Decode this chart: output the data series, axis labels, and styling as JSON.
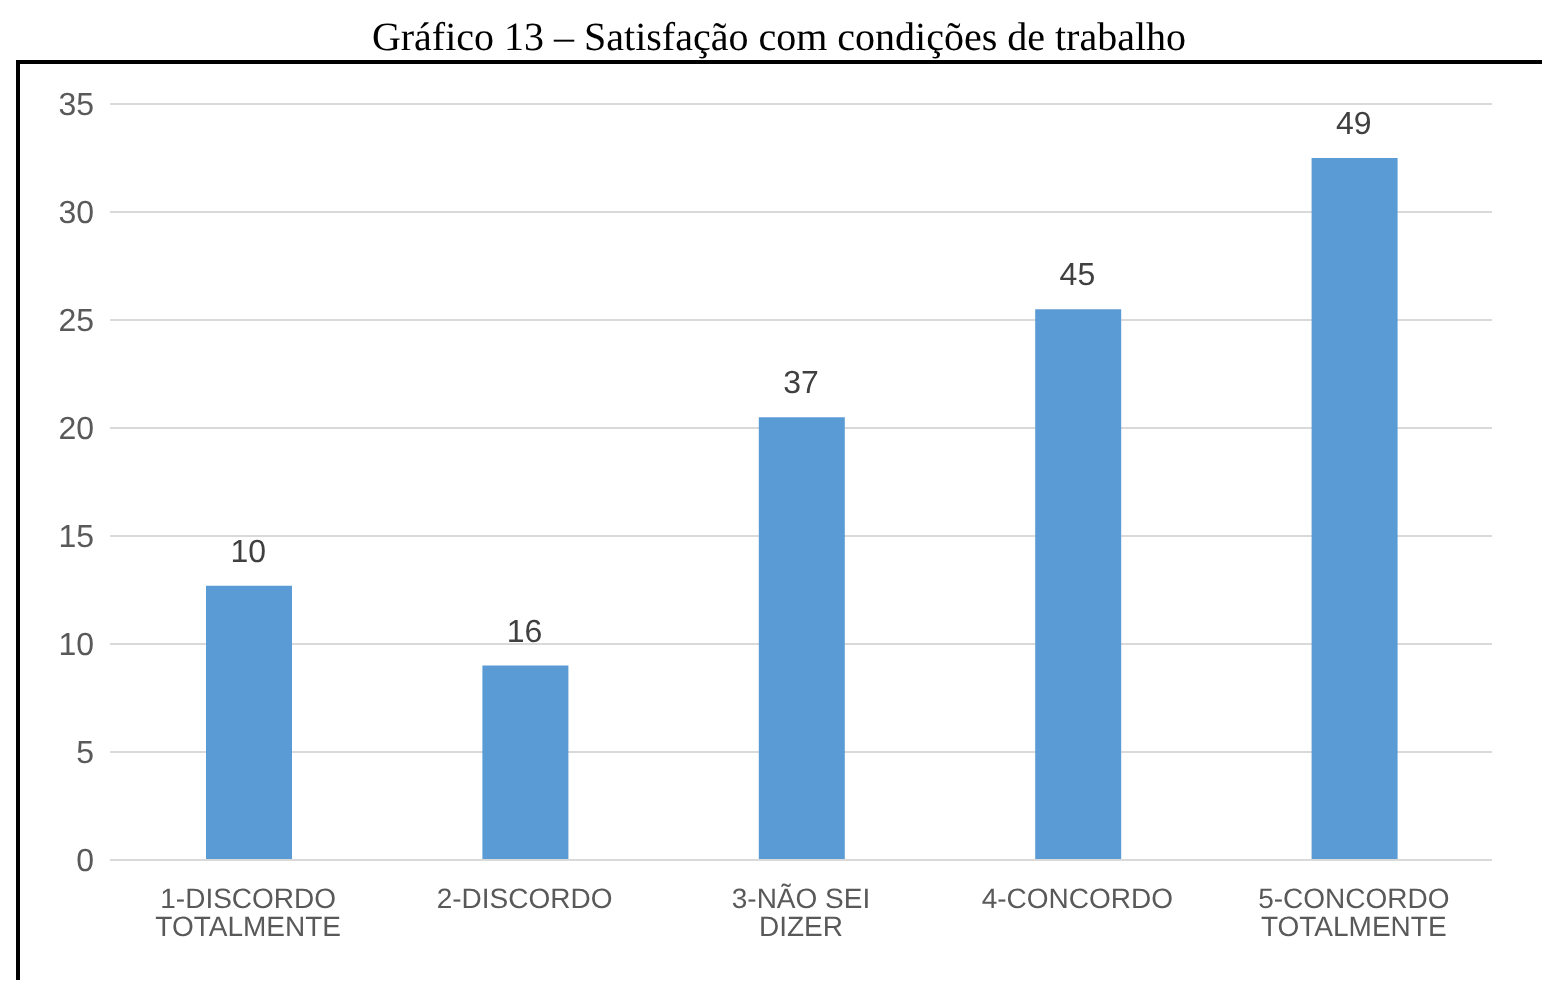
{
  "chart_data": {
    "type": "bar",
    "title": "Gráfico 13 – Satisfação com condições de trabalho",
    "categories": [
      "1-DISCORDO TOTALMENTE",
      "2-DISCORDO",
      "3-NÃO SEI DIZER",
      "4-CONCORDO",
      "5-CONCORDO TOTALMENTE"
    ],
    "values": [
      12.7,
      9,
      20.5,
      25.5,
      32.5
    ],
    "annotations": [
      {
        "text": "10",
        "x": "1-DISCORDO TOTALMENTE",
        "y": 12.7
      },
      {
        "text": "16",
        "x": "2-DISCORDO",
        "y": 9
      },
      {
        "text": "37",
        "x": "3-NÃO SEI DIZER",
        "y": 20.5
      },
      {
        "text": "45",
        "x": "4-CONCORDO",
        "y": 25.5
      },
      {
        "text": "49",
        "x": "5-CONCORDO TOTALMENTE",
        "y": 32.5
      }
    ],
    "color": "#5b9bd5",
    "ylim": [
      0,
      35
    ],
    "yticks": [
      0,
      5,
      10,
      15,
      20,
      25,
      30,
      35
    ],
    "grid": "y"
  }
}
